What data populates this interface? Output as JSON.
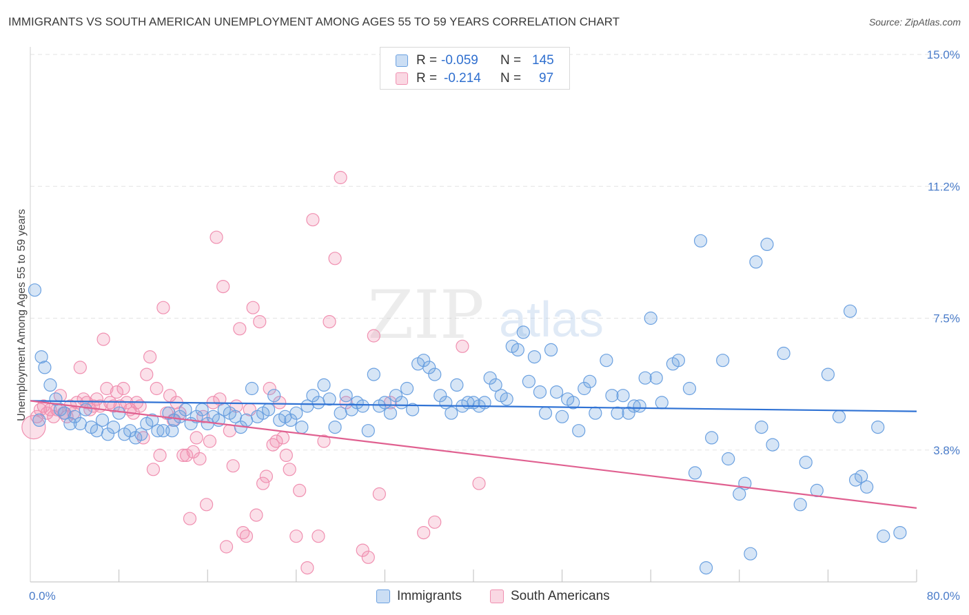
{
  "title": "IMMIGRANTS VS SOUTH AMERICAN UNEMPLOYMENT AMONG AGES 55 TO 59 YEARS CORRELATION CHART",
  "source": "Source: ZipAtlas.com",
  "watermark": {
    "zip": "ZIP",
    "atlas": "atlas"
  },
  "legend_top": {
    "rows": [
      {
        "r_label": "R =",
        "r_value": "-0.059",
        "n_label": "N =",
        "n_value": "145",
        "color": "#6aa0e0"
      },
      {
        "r_label": "R =",
        "r_value": "-0.214",
        "n_label": "N =",
        "n_value": "97",
        "color": "#f08fb0"
      }
    ]
  },
  "legend_bottom": {
    "items": [
      {
        "label": "Immigrants",
        "color": "#6aa0e0"
      },
      {
        "label": "South Americans",
        "color": "#f08fb0"
      }
    ]
  },
  "chart_data": {
    "type": "scatter",
    "title": "IMMIGRANTS VS SOUTH AMERICAN UNEMPLOYMENT AMONG AGES 55 TO 59 YEARS CORRELATION CHART",
    "xlabel": "",
    "ylabel": "Unemployment Among Ages 55 to 59 years",
    "xlim": [
      0,
      80
    ],
    "ylim": [
      0,
      15
    ],
    "x_tick_labels": [
      "0.0%",
      "80.0%"
    ],
    "y_tick_values": [
      3.75,
      7.5,
      11.25,
      15.0
    ],
    "y_tick_labels": [
      "3.8%",
      "7.5%",
      "11.2%",
      "15.0%"
    ],
    "series": [
      {
        "name": "Immigrants",
        "color": "#6aa0e0",
        "line_color": "#2f72d4",
        "trend": {
          "x": [
            0,
            80
          ],
          "y": [
            5.15,
            4.85
          ]
        },
        "points": [
          [
            0.4,
            8.3
          ],
          [
            1.0,
            6.4
          ],
          [
            1.3,
            6.1
          ],
          [
            1.8,
            5.6
          ],
          [
            2.3,
            5.2
          ],
          [
            2.7,
            4.9
          ],
          [
            3.1,
            4.8
          ],
          [
            3.6,
            4.5
          ],
          [
            4.0,
            4.7
          ],
          [
            4.5,
            4.5
          ],
          [
            5.0,
            4.9
          ],
          [
            5.5,
            4.4
          ],
          [
            6.0,
            4.3
          ],
          [
            6.5,
            4.6
          ],
          [
            7.0,
            4.2
          ],
          [
            7.5,
            4.4
          ],
          [
            8.0,
            4.8
          ],
          [
            8.5,
            4.2
          ],
          [
            9.0,
            4.3
          ],
          [
            9.5,
            4.1
          ],
          [
            10.0,
            4.2
          ],
          [
            10.5,
            4.5
          ],
          [
            11.0,
            4.6
          ],
          [
            11.5,
            4.3
          ],
          [
            12.0,
            4.3
          ],
          [
            12.5,
            4.8
          ],
          [
            13.0,
            4.6
          ],
          [
            13.5,
            4.7
          ],
          [
            14.0,
            4.9
          ],
          [
            14.5,
            4.5
          ],
          [
            15.0,
            4.7
          ],
          [
            15.5,
            4.9
          ],
          [
            16.0,
            4.5
          ],
          [
            16.5,
            4.7
          ],
          [
            17.0,
            4.6
          ],
          [
            17.5,
            4.9
          ],
          [
            18.0,
            4.8
          ],
          [
            18.5,
            4.7
          ],
          [
            19.0,
            4.4
          ],
          [
            19.5,
            4.6
          ],
          [
            20.0,
            5.5
          ],
          [
            20.5,
            4.7
          ],
          [
            21.0,
            4.8
          ],
          [
            21.5,
            4.9
          ],
          [
            22.0,
            5.3
          ],
          [
            22.5,
            4.6
          ],
          [
            23.0,
            4.7
          ],
          [
            23.5,
            4.6
          ],
          [
            24.0,
            4.8
          ],
          [
            24.5,
            4.4
          ],
          [
            25.0,
            5.0
          ],
          [
            25.5,
            5.3
          ],
          [
            26.0,
            5.1
          ],
          [
            26.5,
            5.6
          ],
          [
            27.0,
            5.2
          ],
          [
            27.5,
            4.4
          ],
          [
            28.0,
            4.8
          ],
          [
            28.5,
            5.3
          ],
          [
            29.0,
            4.9
          ],
          [
            29.5,
            5.1
          ],
          [
            30.0,
            5.0
          ],
          [
            30.5,
            4.3
          ],
          [
            31.0,
            5.9
          ],
          [
            31.5,
            5.0
          ],
          [
            32.0,
            5.1
          ],
          [
            32.5,
            4.8
          ],
          [
            33.0,
            5.3
          ],
          [
            33.5,
            5.1
          ],
          [
            34.0,
            5.5
          ],
          [
            34.5,
            4.9
          ],
          [
            35.0,
            6.2
          ],
          [
            35.5,
            6.3
          ],
          [
            36.0,
            6.1
          ],
          [
            36.5,
            5.9
          ],
          [
            37.0,
            5.3
          ],
          [
            37.5,
            5.1
          ],
          [
            38.0,
            4.8
          ],
          [
            38.5,
            5.6
          ],
          [
            39.0,
            5.0
          ],
          [
            39.5,
            5.1
          ],
          [
            40.0,
            5.1
          ],
          [
            40.5,
            5.0
          ],
          [
            41.0,
            5.1
          ],
          [
            41.5,
            5.8
          ],
          [
            42.0,
            5.6
          ],
          [
            42.5,
            5.3
          ],
          [
            43.0,
            5.2
          ],
          [
            43.5,
            6.7
          ],
          [
            44.0,
            6.6
          ],
          [
            44.5,
            7.1
          ],
          [
            45.0,
            5.7
          ],
          [
            45.5,
            6.4
          ],
          [
            46.0,
            5.4
          ],
          [
            46.5,
            4.8
          ],
          [
            47.0,
            6.6
          ],
          [
            47.5,
            5.4
          ],
          [
            48.0,
            4.7
          ],
          [
            48.5,
            5.2
          ],
          [
            49.0,
            5.1
          ],
          [
            49.5,
            4.3
          ],
          [
            50.0,
            5.5
          ],
          [
            50.5,
            5.7
          ],
          [
            51.0,
            4.8
          ],
          [
            52.0,
            6.3
          ],
          [
            52.5,
            5.3
          ],
          [
            53.0,
            4.8
          ],
          [
            53.5,
            5.3
          ],
          [
            54.0,
            4.8
          ],
          [
            54.5,
            5.0
          ],
          [
            55.0,
            5.0
          ],
          [
            55.5,
            5.8
          ],
          [
            56.0,
            7.5
          ],
          [
            56.5,
            5.8
          ],
          [
            57.0,
            5.1
          ],
          [
            58.0,
            6.2
          ],
          [
            58.5,
            6.3
          ],
          [
            59.5,
            5.5
          ],
          [
            60.0,
            3.1
          ],
          [
            60.5,
            9.7
          ],
          [
            61.0,
            0.4
          ],
          [
            61.5,
            4.1
          ],
          [
            62.5,
            6.3
          ],
          [
            63.0,
            3.5
          ],
          [
            64.0,
            2.5
          ],
          [
            64.5,
            2.8
          ],
          [
            65.0,
            0.8
          ],
          [
            65.5,
            9.1
          ],
          [
            66.0,
            4.4
          ],
          [
            66.5,
            9.6
          ],
          [
            67.0,
            3.9
          ],
          [
            68.0,
            6.5
          ],
          [
            69.5,
            2.2
          ],
          [
            70.0,
            3.4
          ],
          [
            71.0,
            2.6
          ],
          [
            72.0,
            5.9
          ],
          [
            73.0,
            4.7
          ],
          [
            74.0,
            7.7
          ],
          [
            74.5,
            2.9
          ],
          [
            75.0,
            3.0
          ],
          [
            75.5,
            2.7
          ],
          [
            76.5,
            4.4
          ],
          [
            77.0,
            1.3
          ],
          [
            78.5,
            1.4
          ],
          [
            0.8,
            4.6
          ],
          [
            12.8,
            4.3
          ]
        ]
      },
      {
        "name": "South Americans",
        "color": "#f08fb0",
        "line_color": "#e06090",
        "trend": {
          "x": [
            0,
            80
          ],
          "y": [
            5.15,
            2.1
          ]
        },
        "points": [
          [
            0.3,
            4.4
          ],
          [
            0.6,
            4.7
          ],
          [
            0.9,
            4.9
          ],
          [
            1.2,
            5.0
          ],
          [
            1.5,
            4.8
          ],
          [
            1.8,
            4.9
          ],
          [
            2.1,
            4.7
          ],
          [
            2.4,
            4.9
          ],
          [
            2.7,
            5.3
          ],
          [
            3.0,
            4.8
          ],
          [
            3.3,
            4.7
          ],
          [
            3.6,
            5.0
          ],
          [
            3.9,
            4.8
          ],
          [
            4.2,
            5.1
          ],
          [
            4.5,
            6.1
          ],
          [
            4.8,
            5.2
          ],
          [
            5.1,
            5.1
          ],
          [
            5.4,
            4.9
          ],
          [
            5.7,
            5.0
          ],
          [
            6.0,
            5.2
          ],
          [
            6.3,
            5.0
          ],
          [
            6.6,
            6.9
          ],
          [
            6.9,
            5.5
          ],
          [
            7.2,
            5.1
          ],
          [
            7.5,
            5.0
          ],
          [
            7.8,
            5.4
          ],
          [
            8.1,
            5.0
          ],
          [
            8.4,
            5.5
          ],
          [
            8.7,
            5.1
          ],
          [
            9.0,
            4.9
          ],
          [
            9.3,
            4.8
          ],
          [
            9.6,
            5.1
          ],
          [
            9.9,
            5.0
          ],
          [
            10.2,
            4.1
          ],
          [
            10.5,
            5.9
          ],
          [
            10.8,
            6.4
          ],
          [
            11.1,
            3.2
          ],
          [
            11.4,
            5.5
          ],
          [
            11.7,
            3.6
          ],
          [
            12.0,
            7.8
          ],
          [
            12.3,
            4.8
          ],
          [
            12.6,
            5.3
          ],
          [
            12.9,
            4.6
          ],
          [
            13.2,
            5.1
          ],
          [
            13.5,
            4.8
          ],
          [
            13.8,
            3.6
          ],
          [
            14.1,
            3.6
          ],
          [
            14.4,
            1.8
          ],
          [
            14.7,
            3.7
          ],
          [
            15.0,
            4.1
          ],
          [
            15.3,
            3.5
          ],
          [
            15.6,
            4.7
          ],
          [
            15.9,
            2.2
          ],
          [
            16.2,
            4.0
          ],
          [
            16.5,
            5.1
          ],
          [
            16.8,
            9.8
          ],
          [
            17.1,
            5.2
          ],
          [
            17.4,
            8.4
          ],
          [
            17.7,
            1.0
          ],
          [
            18.0,
            4.3
          ],
          [
            18.3,
            3.3
          ],
          [
            18.6,
            5.0
          ],
          [
            18.9,
            7.2
          ],
          [
            19.2,
            1.4
          ],
          [
            19.5,
            1.3
          ],
          [
            19.8,
            4.9
          ],
          [
            20.1,
            7.8
          ],
          [
            20.4,
            1.9
          ],
          [
            20.7,
            7.4
          ],
          [
            21.0,
            2.8
          ],
          [
            21.3,
            3.0
          ],
          [
            21.6,
            5.5
          ],
          [
            21.9,
            3.9
          ],
          [
            22.2,
            4.0
          ],
          [
            22.5,
            5.1
          ],
          [
            22.8,
            4.1
          ],
          [
            23.1,
            3.6
          ],
          [
            23.4,
            3.2
          ],
          [
            24.0,
            1.3
          ],
          [
            24.3,
            2.6
          ],
          [
            25.0,
            0.4
          ],
          [
            25.5,
            10.3
          ],
          [
            26.0,
            1.3
          ],
          [
            26.5,
            4.0
          ],
          [
            27.0,
            7.4
          ],
          [
            27.5,
            9.2
          ],
          [
            28.0,
            11.5
          ],
          [
            28.5,
            5.1
          ],
          [
            30.0,
            0.9
          ],
          [
            30.5,
            0.7
          ],
          [
            31.0,
            7.0
          ],
          [
            31.5,
            2.5
          ],
          [
            32.5,
            5.1
          ],
          [
            35.5,
            1.4
          ],
          [
            36.5,
            1.7
          ],
          [
            39.0,
            6.7
          ],
          [
            40.5,
            2.8
          ]
        ]
      }
    ]
  }
}
